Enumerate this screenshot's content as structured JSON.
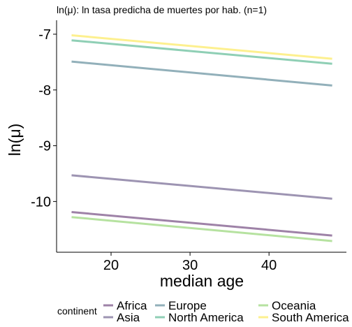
{
  "chart_data": {
    "type": "line",
    "title": "ln(μ): ln tasa predicha de muertes por hab. (n=1)",
    "xlabel": "median age",
    "ylabel": "ln(μ)",
    "xlim": [
      13.1,
      49.8
    ],
    "ylim": [
      -10.91,
      -6.75
    ],
    "x_ticks": [
      20,
      30,
      40
    ],
    "y_ticks": [
      -7,
      -8,
      -9,
      -10
    ],
    "grid": false,
    "legend": {
      "title": "continent",
      "position": "bottom"
    },
    "series": [
      {
        "name": "Africa",
        "color": "#9e82a7",
        "x": [
          15,
          48
        ],
        "y": [
          -10.19,
          -10.61
        ]
      },
      {
        "name": "Asia",
        "color": "#9d94b2",
        "x": [
          15,
          48
        ],
        "y": [
          -9.53,
          -9.95
        ]
      },
      {
        "name": "Europe",
        "color": "#92b0ba",
        "x": [
          15,
          48
        ],
        "y": [
          -7.49,
          -7.92
        ]
      },
      {
        "name": "North America",
        "color": "#8fcfb5",
        "x": [
          15,
          48
        ],
        "y": [
          -7.11,
          -7.53
        ]
      },
      {
        "name": "Oceania",
        "color": "#b6e2a0",
        "x": [
          15,
          48
        ],
        "y": [
          -10.28,
          -10.71
        ]
      },
      {
        "name": "South America",
        "color": "#fdf08f",
        "x": [
          15,
          48
        ],
        "y": [
          -7.02,
          -7.44
        ]
      }
    ]
  }
}
